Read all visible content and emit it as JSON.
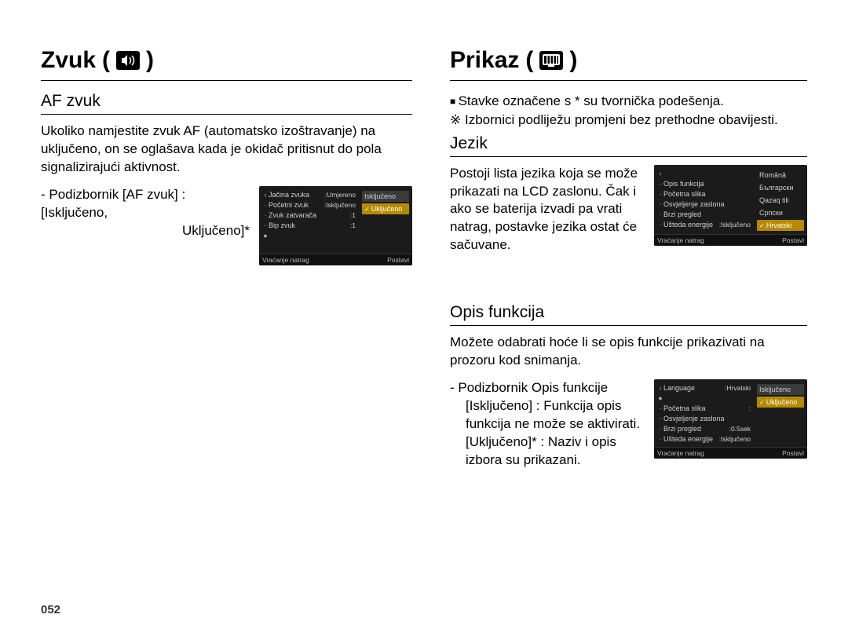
{
  "page_number": "052",
  "left": {
    "title": "Zvuk",
    "section": {
      "heading": "AF zvuk",
      "paragraph": "Ukoliko namjestite zvuk AF (automatsko izoštravanje) na uključeno, on se oglašava kada je okidač pritisnut do pola signalizirajući aktivnost.",
      "submenu_line1": "- Podizbornik [AF zvuk] : [Isključeno,",
      "submenu_line2": "Uključeno]*",
      "lcd": {
        "rows": [
          {
            "label": "Jačina zvuka",
            "value": ":Umjereno",
            "dot": "‹"
          },
          {
            "label": "Početni zvuk",
            "value": ":Isključeno",
            "dot": "·"
          },
          {
            "label": "Zvuk zatvarača",
            "value": ":1",
            "dot": "·"
          },
          {
            "label": "Bip zvuk",
            "value": ":1",
            "dot": "·"
          },
          {
            "label": "",
            "value": "",
            "dot": "●"
          }
        ],
        "options": [
          {
            "text": "Isključeno",
            "boxed": true,
            "sel": false,
            "chk": false
          },
          {
            "text": "Uključeno",
            "boxed": false,
            "sel": true,
            "chk": true
          }
        ],
        "footer_left": "Vraćanje natrag",
        "footer_right": "Postavi"
      }
    }
  },
  "right": {
    "title": "Prikaz",
    "notes": {
      "n1": "Stavke označene s * su tvornička podešenja.",
      "n2": "Izbornici podliježu promjeni bez prethodne obavijesti."
    },
    "jezik": {
      "heading": "Jezik",
      "paragraph": "Postoji lista jezika koja se može prikazati na LCD zaslonu. Čak i ako se baterija izvadi pa vrati natrag, postavke jezika ostat će sačuvane.",
      "lcd": {
        "rows": [
          {
            "label": "",
            "value": "",
            "dot": "‹"
          },
          {
            "label": "Opis funkcija",
            "value": "",
            "dot": "·"
          },
          {
            "label": "Početna slika",
            "value": "",
            "dot": "·"
          },
          {
            "label": "Osvjeljenje zaslona",
            "value": "",
            "dot": "·"
          },
          {
            "label": "Brzi pregled",
            "value": "",
            "dot": "·"
          },
          {
            "label": "Ušteda energije",
            "value": ":Isključeno",
            "dot": "·"
          }
        ],
        "options": [
          {
            "text": "Română",
            "boxed": false,
            "sel": false,
            "chk": false
          },
          {
            "text": "Български",
            "boxed": false,
            "sel": false,
            "chk": false
          },
          {
            "text": "Qazaq tili",
            "boxed": false,
            "sel": false,
            "chk": false
          },
          {
            "text": "Српски",
            "boxed": false,
            "sel": false,
            "chk": false
          },
          {
            "text": "Hrvatski",
            "boxed": false,
            "sel": true,
            "chk": true
          }
        ],
        "footer_left": "Vraćanje natrag",
        "footer_right": "Postavi"
      }
    },
    "opis": {
      "heading": "Opis funkcija",
      "paragraph": "Možete odabrati hoće li se opis funkcije prikazivati na prozoru kod snimanja.",
      "sub_lines": {
        "l1": "- Podizbornik Opis funkcije",
        "l2a": "[Isključeno] :",
        "l2b": "Funkcija opis funkcija ne može se aktivirati.",
        "l3a": "[Uključeno]* :",
        "l3b": "Naziv i opis izbora su prikazani."
      },
      "lcd": {
        "rows": [
          {
            "label": "Language",
            "value": ":Hrvatski",
            "dot": "‹"
          },
          {
            "label": "",
            "value": "",
            "dot": "●"
          },
          {
            "label": "Početna slika",
            "value": ":",
            "dot": "·"
          },
          {
            "label": "Osvjeljenje zaslona",
            "value": "",
            "dot": "·"
          },
          {
            "label": "Brzi pregled",
            "value": ":0.5sek",
            "dot": "·"
          },
          {
            "label": "Ušteda energije",
            "value": ":Isključeno",
            "dot": "·"
          }
        ],
        "options": [
          {
            "text": "Isključeno",
            "boxed": true,
            "sel": false,
            "chk": false
          },
          {
            "text": "Uključeno",
            "boxed": false,
            "sel": true,
            "chk": true
          }
        ],
        "footer_left": "Vraćanje natrag",
        "footer_right": "Postavi"
      }
    }
  }
}
